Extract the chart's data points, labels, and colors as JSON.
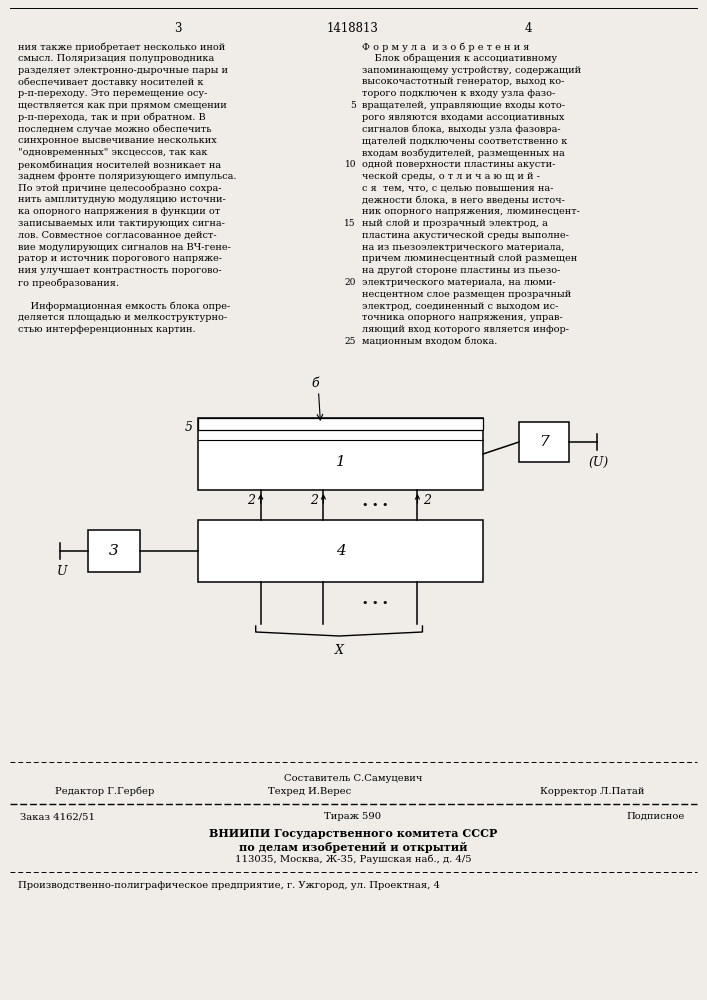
{
  "bg_color": "#f0ede8",
  "page_number_left": "3",
  "page_number_center": "1418813",
  "page_number_right": "4",
  "left_column_lines": [
    "ния также приобретает несколько иной",
    "смысл. Поляризация полупроводника",
    "разделяет электронно-дырочные пары и",
    "обеспечивает доставку носителей к",
    "р-п-переходу. Это перемещение осу-",
    "ществляется как при прямом смещении",
    "р-п-перехода, так и при обратном. В",
    "последнем случае можно обеспечить",
    "синхронное высвечивание нескольких",
    "\"одновременных\" эксцессов, так как",
    "рекомбинация носителей возникает на",
    "заднем фронте поляризующего импульса.",
    "По этой причине целесообразно сохра-",
    "нить амплитудную модуляцию источни-",
    "ка опорного напряжения в функции от",
    "записываемых или тактирующих сигна-",
    "лов. Совместное согласованное дейст-",
    "вие модулирующих сигналов на ВЧ-гене-",
    "ратор и источник порогового напряже-",
    "ния улучшает контрастность порогово-",
    "го преобразования.",
    "",
    "    Информационная емкость блока опре-",
    "деляется площадью и мелкоструктурно-",
    "стью интерференционных картин."
  ],
  "right_column_header": "Ф о р м у л а  и з о б р е т е н и я",
  "right_column_lines": [
    "    Блок обращения к ассоциативному",
    "запоминающему устройству, содержащий",
    "высокочастотный генератор, выход ко-",
    "торого подключен к входу узла фазо-",
    "вращателей, управляющие входы кото-",
    "рого являются входами ассоциативных",
    "сигналов блока, выходы узла фазовра-",
    "щателей подключены соответственно к",
    "входам возбудителей, размещенных на",
    "одной поверхности пластины акусти-",
    "ческой среды, о т л и ч а ю щ и й -",
    "с я  тем, что, с целью повышения на-",
    "дежности блока, в него введены источ-",
    "ник опорного напряжения, люминесцент-",
    "ный слой и прозрачный электрод, а",
    "пластина акустической среды выполне-",
    "на из пьезоэлектрического материала,",
    "причем люминесцентный слой размещен",
    "на другой стороне пластины из пьезо-",
    "электрического материала, на люми-",
    "несцентном слое размещен прозрачный",
    "электрод, соединенный с выходом ис-",
    "точника опорного напряжения, управ-",
    "ляющий вход которого является инфор-",
    "мационным входом блока."
  ],
  "line_numbers": [
    5,
    10,
    15,
    20,
    25
  ],
  "line_number_rows": [
    4,
    9,
    14,
    19,
    24
  ],
  "footer_composer_label": "Составитель С.Самуцевич",
  "footer_editor_label": "Редактор Г.Гербер",
  "footer_techred_label": "Техред И.Верес",
  "footer_corrector_label": "Корректор Л.Патай",
  "footer_order": "Заказ 4162/51",
  "footer_tirazh": "Тираж 590",
  "footer_podpisnoe": "Подписное",
  "footer_vnipi": "ВНИИПИ Государственного комитета СССР",
  "footer_vnipi2": "по делам изобретений и открытий",
  "footer_vnipi3": "113035, Москва, Ж-35, Раушская наб., д. 4/5",
  "footer_prod": "Производственно-полиграфическое предприятие, г. Ужгород, ул. Проектная, 4",
  "diagram": {
    "box1_label": "1",
    "box3_label": "3",
    "box4_label": "4",
    "box7_label": "7",
    "label_5": "5",
    "label_6": "б",
    "label_2a": "2",
    "label_2b": "2",
    "label_2c": "2",
    "label_U_right": "(U)",
    "label_U_left": "U",
    "label_X": "X"
  }
}
